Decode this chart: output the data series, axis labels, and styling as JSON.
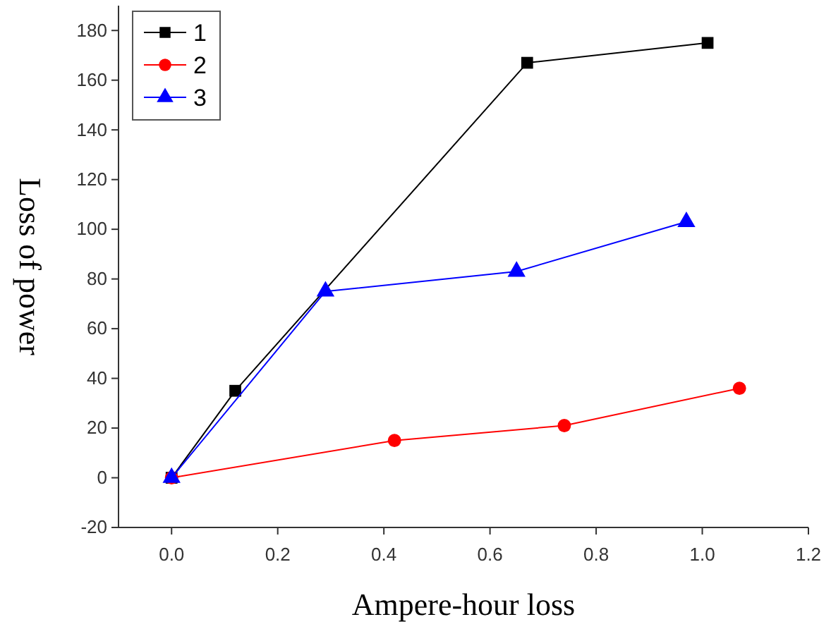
{
  "chart_data": {
    "type": "line",
    "xlabel": "Ampere-hour loss",
    "ylabel": "Loss of power",
    "xlim": [
      -0.1,
      1.2
    ],
    "xticks": [
      {
        "value": 0,
        "label": "0.0"
      },
      {
        "value": 0.2,
        "label": "0.2"
      },
      {
        "value": 0.4,
        "label": "0.4"
      },
      {
        "value": 0.6,
        "label": "0.6"
      },
      {
        "value": 0.8,
        "label": "0.8"
      },
      {
        "value": 1,
        "label": "1.0"
      },
      {
        "value": 1.2,
        "label": "1.2"
      }
    ],
    "ylim": [
      -20,
      190
    ],
    "yticks": [
      -20,
      0,
      20,
      40,
      60,
      80,
      100,
      120,
      140,
      160,
      180
    ],
    "legend": "top left",
    "grid": false,
    "series": [
      {
        "name": "1",
        "color": "#000000",
        "marker": "square",
        "x": [
          0,
          0.12,
          0.67,
          1.01
        ],
        "values": [
          0,
          35,
          167,
          175
        ]
      },
      {
        "name": "2",
        "color": "#ff0000",
        "marker": "circle",
        "x": [
          0,
          0.42,
          0.74,
          1.07
        ],
        "values": [
          0,
          15,
          21,
          36
        ]
      },
      {
        "name": "3",
        "color": "#0000ff",
        "marker": "triangle",
        "x": [
          0,
          0.29,
          0.65,
          0.97
        ],
        "values": [
          0,
          75,
          83,
          103
        ]
      }
    ]
  }
}
